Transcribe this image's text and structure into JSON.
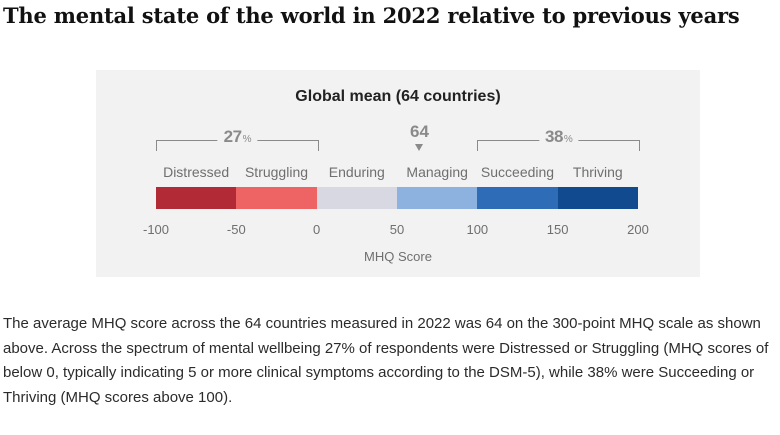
{
  "headline": "The mental state of the world in 2022 relative to previous years",
  "chart_data": {
    "type": "bar",
    "title": "Global mean (64 countries)",
    "xlabel": "MHQ Score",
    "xlim": [
      -100,
      200
    ],
    "ticks": [
      "-100",
      "-50",
      "0",
      "50",
      "100",
      "150",
      "200"
    ],
    "categories": [
      {
        "name": "Distressed",
        "from": -100,
        "to": -50,
        "color": "#b12a35"
      },
      {
        "name": "Struggling",
        "from": -50,
        "to": 0,
        "color": "#ee6464"
      },
      {
        "name": "Enduring",
        "from": 0,
        "to": 50,
        "color": "#d8d8e2"
      },
      {
        "name": "Managing",
        "from": 50,
        "to": 100,
        "color": "#8db2df"
      },
      {
        "name": "Succeeding",
        "from": 100,
        "to": 150,
        "color": "#2f6cb8"
      },
      {
        "name": "Thriving",
        "from": 150,
        "to": 200,
        "color": "#124a8f"
      }
    ],
    "mean": {
      "label": "64",
      "value": 64
    },
    "groups": [
      {
        "value": "27",
        "unit": "%",
        "from": -100,
        "to": 0
      },
      {
        "value": "38",
        "unit": "%",
        "from": 100,
        "to": 200
      }
    ]
  },
  "paragraph": "The average MHQ score across the 64 countries measured in 2022 was 64 on the 300-point MHQ scale as shown above. Across the spectrum of mental wellbeing 27% of respondents were Distressed or Struggling (MHQ scores of below 0, typically indicating 5 or more clinical symptoms according to the DSM-5), while 38% were Succeeding or Thriving (MHQ scores above 100)."
}
